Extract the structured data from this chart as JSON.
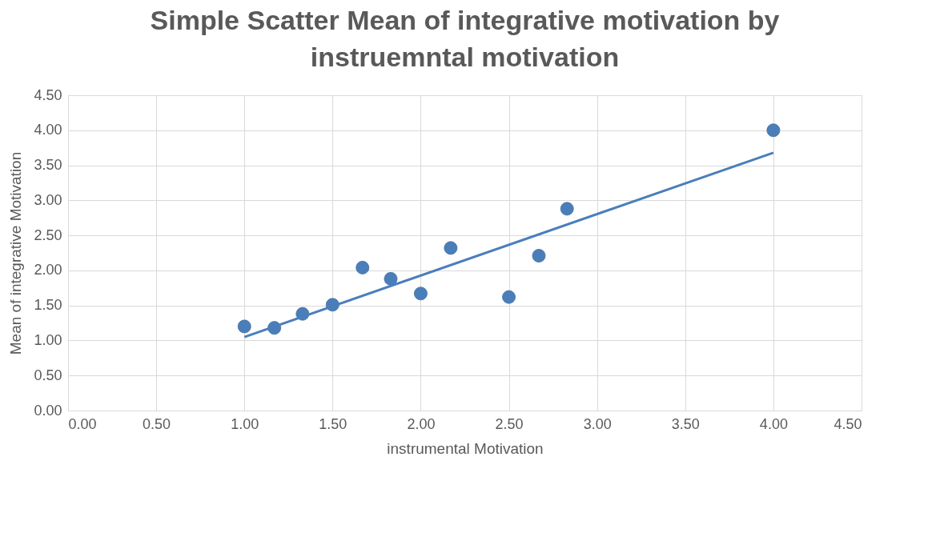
{
  "chart_data": {
    "type": "scatter",
    "title": "Simple Scatter Mean of integrative motivation by instruemntal motivation",
    "xlabel": "instrumental Motivation",
    "ylabel": "Mean of integrative  Motivation",
    "series": [
      {
        "marker": "circle",
        "color": "#4a7ebb",
        "x": [
          1.0,
          1.17,
          1.33,
          1.5,
          1.67,
          1.83,
          2.0,
          2.17,
          2.5,
          2.67,
          2.83,
          4.0
        ],
        "values": [
          1.2,
          1.18,
          1.38,
          1.51,
          2.04,
          1.88,
          1.67,
          2.32,
          1.62,
          2.21,
          2.88,
          4.0
        ]
      },
      {
        "type": "line",
        "color": "#4a7ebb",
        "x": [
          1.0,
          4.0
        ],
        "values": [
          1.05,
          3.68
        ]
      }
    ],
    "xlim": [
      0,
      4.5
    ],
    "ylim": [
      0,
      4.5
    ],
    "xticks": [
      {
        "value": 0,
        "label": "0.00"
      },
      {
        "value": 0.5,
        "label": "0.50"
      },
      {
        "value": 1,
        "label": "1.00"
      },
      {
        "value": 1.5,
        "label": "1.50"
      },
      {
        "value": 2,
        "label": "2.00"
      },
      {
        "value": 2.5,
        "label": "2.50"
      },
      {
        "value": 3,
        "label": "3.00"
      },
      {
        "value": 3.5,
        "label": "3.50"
      },
      {
        "value": 4,
        "label": "4.00"
      },
      {
        "value": 4.5,
        "label": "4.50"
      }
    ],
    "yticks": [
      {
        "value": 0,
        "label": "0.00"
      },
      {
        "value": 0.5,
        "label": "0.50"
      },
      {
        "value": 1,
        "label": "1.00"
      },
      {
        "value": 1.5,
        "label": "1.50"
      },
      {
        "value": 2,
        "label": "2.00"
      },
      {
        "value": 2.5,
        "label": "2.50"
      },
      {
        "value": 3,
        "label": "3.00"
      },
      {
        "value": 3.5,
        "label": "3.50"
      },
      {
        "value": 4,
        "label": "4.00"
      },
      {
        "value": 4.5,
        "label": "4.50"
      }
    ],
    "grid": true,
    "line_style": "solid"
  }
}
